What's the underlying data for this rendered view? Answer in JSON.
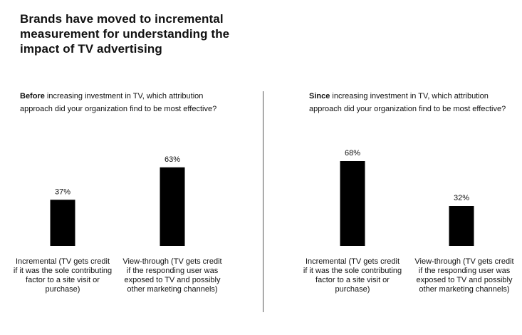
{
  "title": "Brands have moved to incremental measurement for understanding the impact of TV advertising",
  "bar_color": "#000000",
  "chart_data": [
    {
      "type": "bar",
      "question_lead": "Before",
      "question_rest": " increasing investment in TV, which attribution approach did your organization find to be most effective?",
      "categories": [
        "Incremental (TV gets credit if it was the sole contributing factor to a site visit or purchase)",
        "View-through (TV gets credit if the responding user was exposed to TV and possibly other marketing channels)"
      ],
      "values": [
        37,
        63
      ],
      "value_labels": [
        "37%",
        "63%"
      ],
      "ylim": [
        0,
        100
      ]
    },
    {
      "type": "bar",
      "question_lead": "Since",
      "question_rest": " increasing investment in TV, which attribution approach did your organization find to be most effective?",
      "categories": [
        "Incremental (TV gets credit if it was the sole contributing factor to a site visit or purchase)",
        "View-through (TV gets credit if the responding user was exposed to TV and possibly other marketing channels)"
      ],
      "values": [
        68,
        32
      ],
      "value_labels": [
        "68%",
        "32%"
      ],
      "ylim": [
        0,
        100
      ]
    }
  ]
}
